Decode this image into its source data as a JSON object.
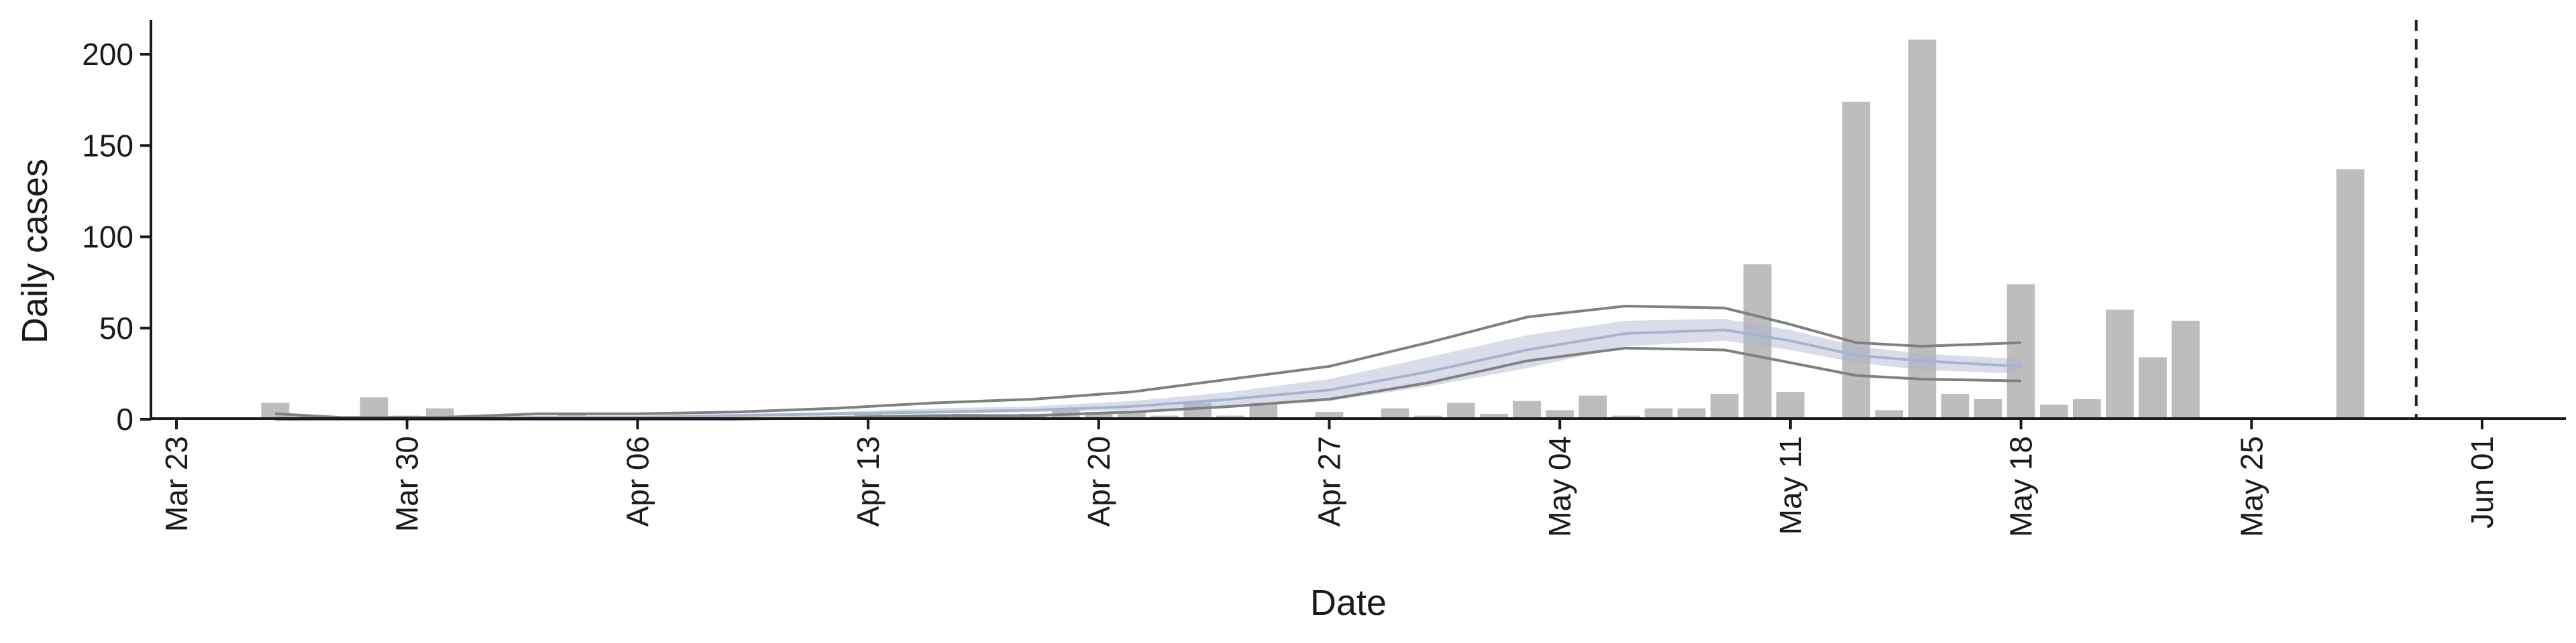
{
  "chart_data": {
    "type": "bar",
    "xlabel": "Date",
    "ylabel": "Daily cases",
    "ylim": [
      -10,
      220
    ],
    "x_ticks": [
      "Mar 23",
      "Mar 30",
      "Apr 06",
      "Apr 13",
      "Apr 20",
      "Apr 27",
      "May 04",
      "May 11",
      "May 18",
      "May 25",
      "Jun 01"
    ],
    "y_ticks": [
      0,
      50,
      100,
      150,
      200
    ],
    "grid": false,
    "legend": "none",
    "vline_date": "2020-05-30",
    "bars": {
      "dates": [
        "2020-03-26",
        "2020-03-27",
        "2020-03-28",
        "2020-03-29",
        "2020-03-30",
        "2020-03-31",
        "2020-04-01",
        "2020-04-02",
        "2020-04-03",
        "2020-04-04",
        "2020-04-05",
        "2020-04-06",
        "2020-04-07",
        "2020-04-08",
        "2020-04-09",
        "2020-04-10",
        "2020-04-11",
        "2020-04-12",
        "2020-04-13",
        "2020-04-14",
        "2020-04-15",
        "2020-04-16",
        "2020-04-17",
        "2020-04-18",
        "2020-04-19",
        "2020-04-20",
        "2020-04-21",
        "2020-04-22",
        "2020-04-23",
        "2020-04-24",
        "2020-04-25",
        "2020-04-26",
        "2020-04-27",
        "2020-04-28",
        "2020-04-29",
        "2020-04-30",
        "2020-05-01",
        "2020-05-02",
        "2020-05-03",
        "2020-05-04",
        "2020-05-05",
        "2020-05-06",
        "2020-05-07",
        "2020-05-08",
        "2020-05-09",
        "2020-05-10",
        "2020-05-11",
        "2020-05-12",
        "2020-05-13",
        "2020-05-14",
        "2020-05-15",
        "2020-05-16",
        "2020-05-17",
        "2020-05-18",
        "2020-05-19",
        "2020-05-20",
        "2020-05-21",
        "2020-05-22",
        "2020-05-23",
        "2020-05-24",
        "2020-05-25",
        "2020-05-26",
        "2020-05-27",
        "2020-05-28",
        "2020-05-29"
      ],
      "values": [
        9,
        0,
        1,
        12,
        2,
        6,
        2,
        0,
        0,
        3,
        0,
        0,
        0,
        0,
        0,
        0,
        0,
        1,
        3,
        2,
        2,
        3,
        2,
        3,
        5,
        4,
        4,
        2,
        9,
        2,
        9,
        0,
        4,
        1,
        6,
        2,
        9,
        3,
        10,
        5,
        13,
        2,
        6,
        6,
        14,
        85,
        15,
        0,
        174,
        5,
        208,
        14,
        11,
        74,
        8,
        11,
        60,
        34,
        54,
        0,
        0,
        0,
        0,
        137,
        0
      ]
    },
    "series": [
      {
        "type": "ribbon",
        "color": "#a9b3cf",
        "dates": [
          "2020-03-26",
          "2020-03-28",
          "2020-03-31",
          "2020-04-03",
          "2020-04-06",
          "2020-04-09",
          "2020-04-12",
          "2020-04-15",
          "2020-04-18",
          "2020-04-21",
          "2020-04-24",
          "2020-04-27",
          "2020-04-30",
          "2020-05-03",
          "2020-05-06",
          "2020-05-09",
          "2020-05-11",
          "2020-05-13",
          "2020-05-15",
          "2020-05-18"
        ],
        "lower": [
          0,
          0,
          0,
          0,
          0,
          1,
          2,
          3,
          4,
          5,
          7,
          10,
          18,
          28,
          40,
          43,
          38,
          31,
          27,
          25
        ],
        "upper": [
          2,
          1,
          1,
          2,
          2,
          3,
          4,
          6,
          7,
          10,
          15,
          22,
          34,
          46,
          54,
          55,
          49,
          40,
          36,
          33
        ]
      },
      {
        "type": "line",
        "color": "#a9b3cf",
        "dates": [
          "2020-03-26",
          "2020-03-28",
          "2020-03-31",
          "2020-04-03",
          "2020-04-06",
          "2020-04-09",
          "2020-04-12",
          "2020-04-15",
          "2020-04-18",
          "2020-04-21",
          "2020-04-24",
          "2020-04-27",
          "2020-04-30",
          "2020-05-03",
          "2020-05-06",
          "2020-05-09",
          "2020-05-11",
          "2020-05-13",
          "2020-05-15",
          "2020-05-18"
        ],
        "values": [
          1,
          0.5,
          0.5,
          1,
          1,
          2,
          3,
          4,
          5,
          7,
          11,
          16,
          26,
          38,
          47,
          49,
          43,
          35,
          32,
          29
        ]
      },
      {
        "type": "line",
        "color": "#808080",
        "dates": [
          "2020-03-26",
          "2020-03-28",
          "2020-03-31",
          "2020-04-03",
          "2020-04-06",
          "2020-04-09",
          "2020-04-12",
          "2020-04-15",
          "2020-04-18",
          "2020-04-21",
          "2020-04-24",
          "2020-04-27",
          "2020-04-30",
          "2020-05-03",
          "2020-05-06",
          "2020-05-09",
          "2020-05-11",
          "2020-05-13",
          "2020-05-15",
          "2020-05-18"
        ],
        "values": [
          3,
          1,
          1,
          3,
          3,
          4,
          6,
          9,
          11,
          15,
          22,
          29,
          42,
          56,
          62,
          61,
          52,
          42,
          40,
          42
        ]
      },
      {
        "type": "line",
        "color": "#808080",
        "dates": [
          "2020-03-26",
          "2020-03-28",
          "2020-03-31",
          "2020-04-03",
          "2020-04-06",
          "2020-04-09",
          "2020-04-12",
          "2020-04-15",
          "2020-04-18",
          "2020-04-21",
          "2020-04-24",
          "2020-04-27",
          "2020-04-30",
          "2020-05-03",
          "2020-05-06",
          "2020-05-09",
          "2020-05-11",
          "2020-05-13",
          "2020-05-15",
          "2020-05-18"
        ],
        "values": [
          0,
          0,
          0,
          0,
          0,
          0,
          1,
          2,
          2,
          4,
          7,
          11,
          20,
          32,
          39,
          38,
          31,
          24,
          22,
          21
        ]
      }
    ]
  },
  "colors": {
    "bar": "#bdbdbd",
    "axis": "#1a1a1a"
  }
}
